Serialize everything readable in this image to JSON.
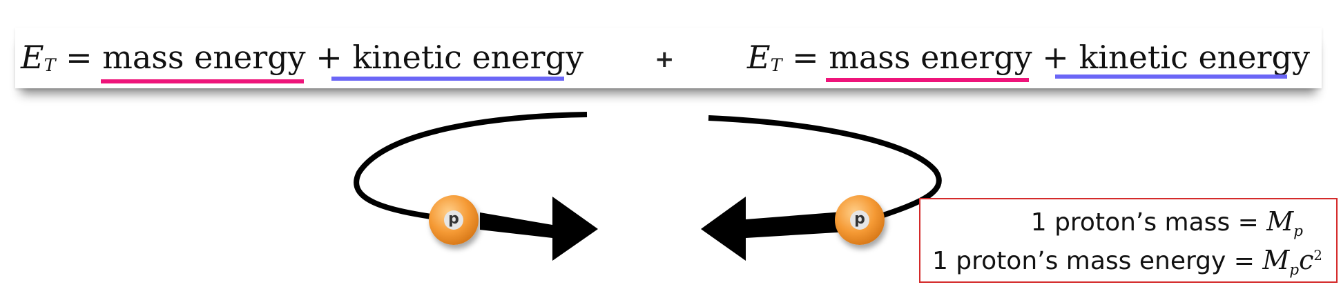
{
  "equations": [
    {
      "symbol": "E",
      "subscript": "T",
      "equals": "=",
      "term1": "mass energy",
      "plus": "+",
      "term2": "kinetic energy"
    },
    {
      "symbol": "E",
      "subscript": "T",
      "equals": "=",
      "term1": "mass energy",
      "plus": "+",
      "term2": "kinetic energy"
    }
  ],
  "between_plus": "+",
  "underline_colors": {
    "mass": "#ee147a",
    "kinetic": "#6b66f6"
  },
  "protons": [
    {
      "label": "p"
    },
    {
      "label": "p"
    }
  ],
  "info": {
    "line1_text": "1 proton’s mass = ",
    "line1_symbol": "M",
    "line1_sub": "p",
    "line2_text": "1 proton’s mass energy = ",
    "line2_symbol": "M",
    "line2_sub": "p",
    "line2_c": "c",
    "line2_sup": "2"
  },
  "colors": {
    "proton": "#f59a35",
    "info_border": "#d42a2a"
  }
}
